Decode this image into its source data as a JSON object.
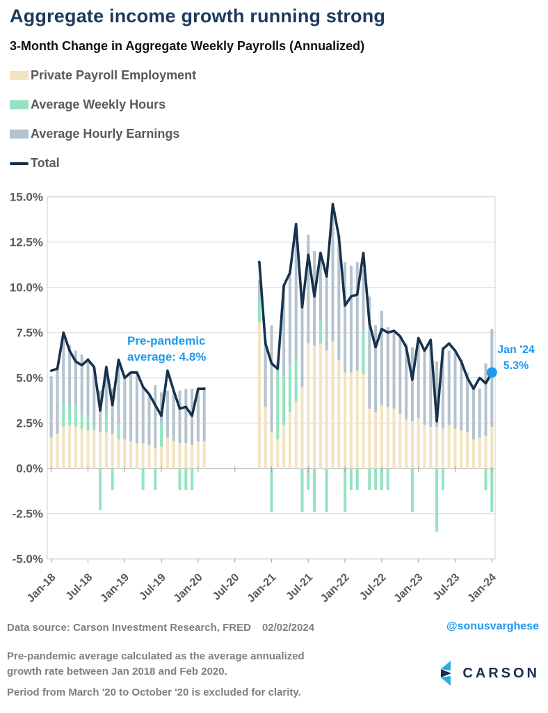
{
  "header": {
    "title": "Aggregate income growth running strong",
    "subtitle": "3-Month Change in Aggregate Weekly Payrolls (Annualized)"
  },
  "legend": {
    "items": [
      {
        "label": "Private Payroll Employment"
      },
      {
        "label": "Average Weekly Hours"
      },
      {
        "label": "Average Hourly Earnings"
      },
      {
        "label": "Total"
      }
    ]
  },
  "annotations": {
    "pre_pandemic": {
      "line1": "Pre-pandemic",
      "line2": "average: 4.8%"
    },
    "jan24": {
      "line1": "Jan '24",
      "line2": "5.3%"
    }
  },
  "footer": {
    "source": "Data source: Carson Investment Research, FRED",
    "date": "02/02/2024",
    "handle": "@sonusvarghese",
    "note1": "Pre-pandemic average calculated as the average annualized growth rate between Jan 2018 and Feb 2020.",
    "note2": "Period from March '20 to October '20 is excluded for clarity.",
    "brand": "CARSON"
  },
  "colors": {
    "payroll": "#f2e3c1",
    "hours": "#93e3bf",
    "earnings": "#b4c3ce",
    "total_line": "#16324d",
    "accent_blue": "#1e9af0",
    "title_navy": "#1c3a5c",
    "axis_text": "#595959",
    "gridline": "#e2e2e2",
    "zero_line": "#bfbfbf",
    "plot_border": "#d7d7d7",
    "footer_gray": "#7f7f7f",
    "logo_navy": "#1b2f4a",
    "logo_blue": "#29abe2"
  },
  "chart_data": {
    "type": "bar",
    "subtype": "stacked-bars-with-total-line",
    "title": "3-Month Change in Aggregate Weekly Payrolls (Annualized)",
    "xlabel": "",
    "ylabel": "",
    "ylim": [
      -5,
      15
    ],
    "grid": true,
    "legend_position": "top-left",
    "excluded_period": "Mar '20 through Oct '20 (no bars plotted)",
    "pre_pandemic_average_pct": 4.8,
    "endpoint": {
      "label": "Jan '24",
      "value": 5.3
    },
    "y_ticks": [
      {
        "label": "15.0%",
        "value": 15
      },
      {
        "label": "12.5%",
        "value": 12.5
      },
      {
        "label": "10.0%",
        "value": 10
      },
      {
        "label": "7.5%",
        "value": 7.5
      },
      {
        "label": "5.0%",
        "value": 5
      },
      {
        "label": "2.5%",
        "value": 2.5
      },
      {
        "label": "0.0%",
        "value": 0
      },
      {
        "label": "-2.5%",
        "value": -2.5
      },
      {
        "label": "-5.0%",
        "value": -5
      }
    ],
    "x_ticks": [
      {
        "label": "Jan-18",
        "slot": 0
      },
      {
        "label": "Jul-18",
        "slot": 6
      },
      {
        "label": "Jan-19",
        "slot": 12
      },
      {
        "label": "Jul-19",
        "slot": 18
      },
      {
        "label": "Jan-20",
        "slot": 24
      },
      {
        "label": "Jul-20",
        "slot": 30
      },
      {
        "label": "Jan-21",
        "slot": 36
      },
      {
        "label": "Jul-21",
        "slot": 42
      },
      {
        "label": "Jan-22",
        "slot": 48
      },
      {
        "label": "Jul-22",
        "slot": 54
      },
      {
        "label": "Jan-23",
        "slot": 60
      },
      {
        "label": "Jul-23",
        "slot": 66
      },
      {
        "label": "Jan-24",
        "slot": 72
      }
    ],
    "series_names": [
      "Private Payroll Employment",
      "Average Weekly Hours",
      "Average Hourly Earnings",
      "Total"
    ],
    "months": [
      {
        "label": "Jan-18",
        "slot": 0,
        "payroll": 1.7,
        "hours": 0,
        "earnings": 3.4,
        "total": 5.4
      },
      {
        "label": "Feb-18",
        "slot": 1,
        "payroll": 1.9,
        "hours": 0,
        "earnings": 3.6,
        "total": 5.5
      },
      {
        "label": "Mar-18",
        "slot": 2,
        "payroll": 2.3,
        "hours": 1.3,
        "earnings": 3.7,
        "total": 7.5
      },
      {
        "label": "Apr-18",
        "slot": 3,
        "payroll": 2.4,
        "hours": 1.1,
        "earnings": 3.3,
        "total": 6.5
      },
      {
        "label": "May-18",
        "slot": 4,
        "payroll": 2.3,
        "hours": 1.2,
        "earnings": 3.0,
        "total": 5.9
      },
      {
        "label": "Jun-18",
        "slot": 5,
        "payroll": 2.2,
        "hours": 0.8,
        "earnings": 3.3,
        "total": 5.7
      },
      {
        "label": "Jul-18",
        "slot": 6,
        "payroll": 2.1,
        "hours": 0.8,
        "earnings": 3.2,
        "total": 6.0
      },
      {
        "label": "Aug-18",
        "slot": 7,
        "payroll": 2.1,
        "hours": 0.3,
        "earnings": 3.1,
        "total": 5.6
      },
      {
        "label": "Sep-18",
        "slot": 8,
        "payroll": 2.0,
        "hours": -2.3,
        "earnings": 2.3,
        "total": 3.2
      },
      {
        "label": "Oct-18",
        "slot": 9,
        "payroll": 2.0,
        "hours": 1.2,
        "earnings": 2.3,
        "total": 5.6
      },
      {
        "label": "Nov-18",
        "slot": 10,
        "payroll": 1.9,
        "hours": -1.2,
        "earnings": 2.5,
        "total": 3.5
      },
      {
        "label": "Dec-18",
        "slot": 11,
        "payroll": 1.6,
        "hours": 0.9,
        "earnings": 3.5,
        "total": 6.0
      },
      {
        "label": "Jan-19",
        "slot": 12,
        "payroll": 1.6,
        "hours": 0,
        "earnings": 3.4,
        "total": 5.0
      },
      {
        "label": "Feb-19",
        "slot": 13,
        "payroll": 1.5,
        "hours": 0,
        "earnings": 3.8,
        "total": 5.3
      },
      {
        "label": "Mar-19",
        "slot": 14,
        "payroll": 1.4,
        "hours": 0,
        "earnings": 3.9,
        "total": 5.3
      },
      {
        "label": "Apr-19",
        "slot": 15,
        "payroll": 1.4,
        "hours": -1.2,
        "earnings": 3.1,
        "total": 4.5
      },
      {
        "label": "May-19",
        "slot": 16,
        "payroll": 1.3,
        "hours": 0,
        "earnings": 2.8,
        "total": 4.1
      },
      {
        "label": "Jun-19",
        "slot": 17,
        "payroll": 1.1,
        "hours": -1.2,
        "earnings": 3.5,
        "total": 3.5
      },
      {
        "label": "Jul-19",
        "slot": 18,
        "payroll": 1.2,
        "hours": 1.3,
        "earnings": 1.7,
        "total": 2.9
      },
      {
        "label": "Aug-19",
        "slot": 19,
        "payroll": 1.7,
        "hours": 0,
        "earnings": 2.6,
        "total": 5.4
      },
      {
        "label": "Sep-19",
        "slot": 20,
        "payroll": 1.5,
        "hours": 0,
        "earnings": 2.8,
        "total": 4.3
      },
      {
        "label": "Oct-19",
        "slot": 21,
        "payroll": 1.4,
        "hours": -1.2,
        "earnings": 2.9,
        "total": 3.3
      },
      {
        "label": "Nov-19",
        "slot": 22,
        "payroll": 1.4,
        "hours": -1.2,
        "earnings": 3.0,
        "total": 3.4
      },
      {
        "label": "Dec-19",
        "slot": 23,
        "payroll": 1.3,
        "hours": -1.2,
        "earnings": 3.1,
        "total": 2.9
      },
      {
        "label": "Jan-20",
        "slot": 24,
        "payroll": 1.5,
        "hours": 0,
        "earnings": 2.9,
        "total": 4.4
      },
      {
        "label": "Feb-20",
        "slot": 25,
        "payroll": 1.5,
        "hours": 0,
        "earnings": 3.0,
        "total": 4.4
      },
      {
        "label": "Nov-20",
        "slot": 34,
        "payroll": 8.1,
        "hours": 1.2,
        "earnings": 1.1,
        "total": 11.4
      },
      {
        "label": "Dec-20",
        "slot": 35,
        "payroll": 3.4,
        "hours": 0,
        "earnings": 3.8,
        "total": 6.9
      },
      {
        "label": "Jan-21",
        "slot": 36,
        "payroll": 2.0,
        "hours": -2.4,
        "earnings": 5.9,
        "total": 5.8
      },
      {
        "label": "Feb-21",
        "slot": 37,
        "payroll": 1.6,
        "hours": 3.9,
        "earnings": 0.4,
        "total": 5.5
      },
      {
        "label": "Mar-21",
        "slot": 38,
        "payroll": 2.4,
        "hours": 2.7,
        "earnings": 5.0,
        "total": 10.1
      },
      {
        "label": "Apr-21",
        "slot": 39,
        "payroll": 3.1,
        "hours": 2.6,
        "earnings": 5.2,
        "total": 10.8
      },
      {
        "label": "May-21",
        "slot": 40,
        "payroll": 3.7,
        "hours": 2.4,
        "earnings": 7.3,
        "total": 13.5
      },
      {
        "label": "Jun-21",
        "slot": 41,
        "payroll": 4.5,
        "hours": -2.4,
        "earnings": 4.4,
        "total": 8.9
      },
      {
        "label": "Jul-21",
        "slot": 42,
        "payroll": 6.9,
        "hours": -1.2,
        "earnings": 6.0,
        "total": 11.8
      },
      {
        "label": "Aug-21",
        "slot": 43,
        "payroll": 6.8,
        "hours": -2.4,
        "earnings": 5.2,
        "total": 9.5
      },
      {
        "label": "Sep-21",
        "slot": 44,
        "payroll": 6.9,
        "hours": 1.2,
        "earnings": 3.8,
        "total": 11.9
      },
      {
        "label": "Oct-21",
        "slot": 45,
        "payroll": 6.5,
        "hours": -2.4,
        "earnings": 4.1,
        "total": 10.6
      },
      {
        "label": "Nov-21",
        "slot": 46,
        "payroll": 7.0,
        "hours": 0,
        "earnings": 7.6,
        "total": 14.6
      },
      {
        "label": "Dec-21",
        "slot": 47,
        "payroll": 6.0,
        "hours": 0,
        "earnings": 6.9,
        "total": 12.8
      },
      {
        "label": "Jan-22",
        "slot": 48,
        "payroll": 5.3,
        "hours": -2.4,
        "earnings": 6.1,
        "total": 9.0
      },
      {
        "label": "Feb-22",
        "slot": 49,
        "payroll": 5.3,
        "hours": -1.2,
        "earnings": 5.9,
        "total": 9.5
      },
      {
        "label": "Mar-22",
        "slot": 50,
        "payroll": 5.4,
        "hours": -1.2,
        "earnings": 6.0,
        "total": 9.6
      },
      {
        "label": "Apr-22",
        "slot": 51,
        "payroll": 5.2,
        "hours": 2.4,
        "earnings": 3.4,
        "total": 11.9
      },
      {
        "label": "May-22",
        "slot": 52,
        "payroll": 3.3,
        "hours": -1.2,
        "earnings": 6.2,
        "total": 8.0
      },
      {
        "label": "Jun-22",
        "slot": 53,
        "payroll": 3.1,
        "hours": -1.2,
        "earnings": 4.8,
        "total": 6.7
      },
      {
        "label": "Jul-22",
        "slot": 54,
        "payroll": 3.5,
        "hours": -1.2,
        "earnings": 5.2,
        "total": 7.7
      },
      {
        "label": "Aug-22",
        "slot": 55,
        "payroll": 3.4,
        "hours": -1.2,
        "earnings": 4.4,
        "total": 7.5
      },
      {
        "label": "Sep-22",
        "slot": 56,
        "payroll": 3.3,
        "hours": 0,
        "earnings": 4.2,
        "total": 7.6
      },
      {
        "label": "Oct-22",
        "slot": 57,
        "payroll": 3.0,
        "hours": 0,
        "earnings": 4.3,
        "total": 7.3
      },
      {
        "label": "Nov-22",
        "slot": 58,
        "payroll": 2.7,
        "hours": 0,
        "earnings": 4.2,
        "total": 6.7
      },
      {
        "label": "Dec-22",
        "slot": 59,
        "payroll": 2.6,
        "hours": -2.4,
        "earnings": 4.1,
        "total": 4.9
      },
      {
        "label": "Jan-23",
        "slot": 60,
        "payroll": 2.8,
        "hours": 0,
        "earnings": 4.2,
        "total": 7.2
      },
      {
        "label": "Feb-23",
        "slot": 61,
        "payroll": 2.4,
        "hours": 0,
        "earnings": 4.2,
        "total": 6.5
      },
      {
        "label": "Mar-23",
        "slot": 62,
        "payroll": 2.3,
        "hours": 0,
        "earnings": 4.7,
        "total": 7.1
      },
      {
        "label": "Apr-23",
        "slot": 63,
        "payroll": 2.3,
        "hours": -3.5,
        "earnings": 3.6,
        "total": 2.6
      },
      {
        "label": "May-23",
        "slot": 64,
        "payroll": 2.2,
        "hours": -1.2,
        "earnings": 4.5,
        "total": 6.6
      },
      {
        "label": "Jun-23",
        "slot": 65,
        "payroll": 2.4,
        "hours": 0,
        "earnings": 4.1,
        "total": 6.9
      },
      {
        "label": "Jul-23",
        "slot": 66,
        "payroll": 2.2,
        "hours": 0,
        "earnings": 4.2,
        "total": 6.5
      },
      {
        "label": "Aug-23",
        "slot": 67,
        "payroll": 2.1,
        "hours": 0,
        "earnings": 3.9,
        "total": 5.9
      },
      {
        "label": "Sep-23",
        "slot": 68,
        "payroll": 2.0,
        "hours": 0,
        "earnings": 3.3,
        "total": 5.0
      },
      {
        "label": "Oct-23",
        "slot": 69,
        "payroll": 1.6,
        "hours": 0,
        "earnings": 2.8,
        "total": 4.4
      },
      {
        "label": "Nov-23",
        "slot": 70,
        "payroll": 1.7,
        "hours": 0,
        "earnings": 2.7,
        "total": 5.0
      },
      {
        "label": "Dec-23",
        "slot": 71,
        "payroll": 1.8,
        "hours": -1.2,
        "earnings": 4.0,
        "total": 4.7
      },
      {
        "label": "Jan-24",
        "slot": 72,
        "payroll": 2.3,
        "hours": -2.4,
        "earnings": 5.4,
        "total": 5.3
      }
    ]
  }
}
